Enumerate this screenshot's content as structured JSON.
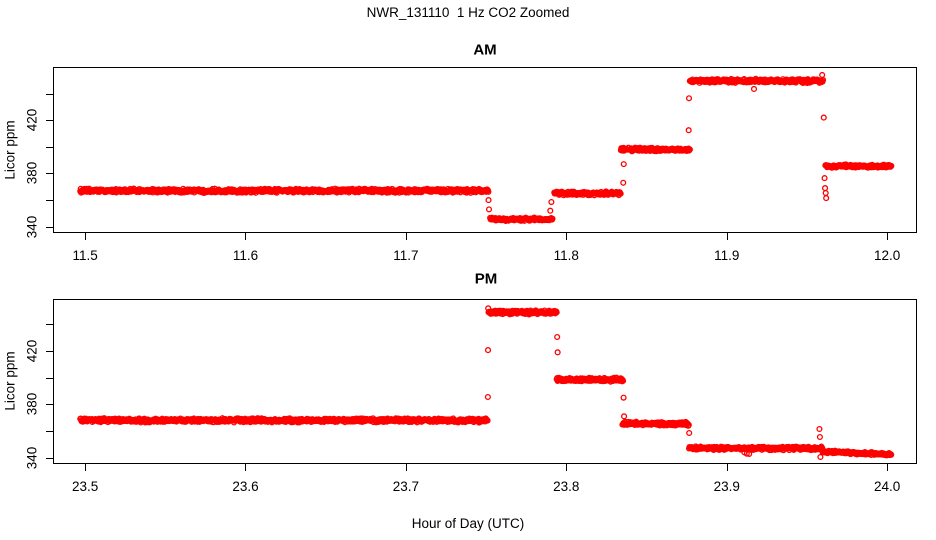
{
  "title": "NWR_131110  1 Hz CO2 Zoomed",
  "xlabel": "Hour of Day (UTC)",
  "point_color": "#ff0000",
  "axis_color": "#000000",
  "background_color": "#ffffff",
  "chart_data": [
    {
      "type": "scatter",
      "panel": "AM",
      "title": "AM",
      "ylabel": "Licor ppm",
      "marker": "open-circle",
      "xlim": [
        11.48,
        12.018
      ],
      "ylim": [
        336,
        460
      ],
      "xticks": [
        11.5,
        11.6,
        11.7,
        11.8,
        11.9,
        12.0
      ],
      "xtick_labels": [
        "11.5",
        "11.6",
        "11.7",
        "11.8",
        "11.9",
        "12.0"
      ],
      "yticks": [
        340,
        360,
        380,
        400,
        420,
        440
      ],
      "ytick_labels": [
        "340",
        "",
        "380",
        "",
        "420",
        ""
      ],
      "sample_rate_hz": 1,
      "segments": [
        {
          "x0": 11.497,
          "x1": 11.7515,
          "ppm0": 367,
          "ppm1": 367,
          "noise": 1.7
        },
        {
          "x0": 11.7525,
          "x1": 11.7915,
          "ppm0": 345.5,
          "ppm1": 345.5,
          "noise": 1.5
        },
        {
          "x0": 11.7925,
          "x1": 11.834,
          "ppm0": 365,
          "ppm1": 365,
          "noise": 1.6
        },
        {
          "x0": 11.834,
          "x1": 11.877,
          "ppm0": 398,
          "ppm1": 398,
          "noise": 1.6
        },
        {
          "x0": 11.877,
          "x1": 11.96,
          "ppm0": 449.5,
          "ppm1": 449.5,
          "noise": 1.7
        },
        {
          "x0": 11.9615,
          "x1": 12.0025,
          "ppm0": 385.5,
          "ppm1": 385.5,
          "noise": 1.4
        }
      ],
      "outliers": [
        [
          11.7515,
          360
        ],
        [
          11.7518,
          353
        ],
        [
          11.79,
          352
        ],
        [
          11.7907,
          358.5
        ],
        [
          11.8355,
          373
        ],
        [
          11.8358,
          387
        ],
        [
          11.8763,
          412.5
        ],
        [
          11.8765,
          436.5
        ],
        [
          11.917,
          443.5
        ],
        [
          11.9595,
          454
        ],
        [
          11.9605,
          422
        ],
        [
          11.961,
          376.5
        ],
        [
          11.9613,
          369
        ],
        [
          11.9617,
          365.3
        ],
        [
          11.962,
          361.5
        ]
      ]
    },
    {
      "type": "scatter",
      "panel": "PM",
      "title": "PM",
      "ylabel": "Licor ppm",
      "marker": "open-circle",
      "xlim": [
        23.48,
        24.018
      ],
      "ylim": [
        336,
        459
      ],
      "xticks": [
        23.5,
        23.6,
        23.7,
        23.8,
        23.9,
        24.0
      ],
      "xtick_labels": [
        "23.5",
        "23.6",
        "23.7",
        "23.8",
        "23.9",
        "24.0"
      ],
      "yticks": [
        340,
        360,
        380,
        400,
        420,
        440
      ],
      "ytick_labels": [
        "340",
        "",
        "380",
        "",
        "420",
        ""
      ],
      "sample_rate_hz": 1,
      "segments": [
        {
          "x0": 23.497,
          "x1": 23.751,
          "ppm0": 368,
          "ppm1": 368,
          "noise": 1.7
        },
        {
          "x0": 23.7515,
          "x1": 23.794,
          "ppm0": 449,
          "ppm1": 449,
          "noise": 1.7
        },
        {
          "x0": 23.794,
          "x1": 23.8355,
          "ppm0": 398.5,
          "ppm1": 398.5,
          "noise": 1.6
        },
        {
          "x0": 23.835,
          "x1": 23.8765,
          "ppm0": 365.5,
          "ppm1": 365.5,
          "noise": 1.6
        },
        {
          "x0": 23.8765,
          "x1": 23.9595,
          "ppm0": 347,
          "ppm1": 347,
          "noise": 1.5
        },
        {
          "x0": 23.9595,
          "x1": 24.0025,
          "ppm0": 344.5,
          "ppm1": 342.5,
          "noise": 1.3
        }
      ],
      "outliers": [
        [
          23.7511,
          385.5
        ],
        [
          23.7512,
          420.7
        ],
        [
          23.7513,
          452
        ],
        [
          23.7943,
          430.5
        ],
        [
          23.7946,
          419
        ],
        [
          23.8357,
          385
        ],
        [
          23.836,
          371
        ],
        [
          23.8766,
          358.5
        ],
        [
          23.911,
          344
        ],
        [
          23.9125,
          343
        ],
        [
          23.914,
          342.8
        ],
        [
          23.9578,
          361.5
        ],
        [
          23.9581,
          355.5
        ],
        [
          23.9584,
          340.5
        ]
      ]
    }
  ]
}
